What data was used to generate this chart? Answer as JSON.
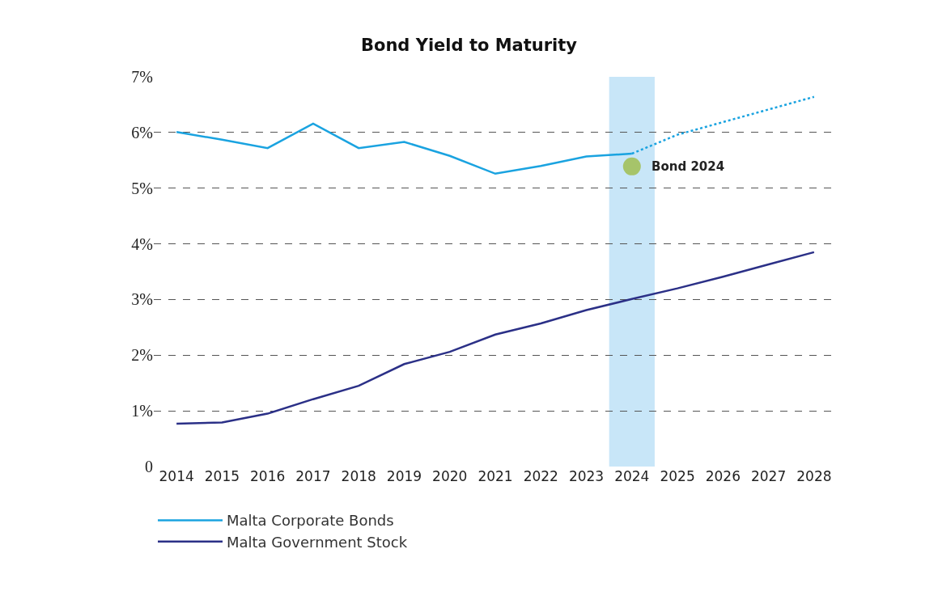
{
  "chart_data": {
    "type": "line",
    "title": "Bond Yield to Maturity",
    "x": [
      2014,
      2015,
      2016,
      2017,
      2018,
      2019,
      2020,
      2021,
      2022,
      2023,
      2024,
      2025,
      2026,
      2027,
      2028
    ],
    "series": [
      {
        "name": "Malta Corporate Bonds",
        "color": "#1aa3e0",
        "values": [
          6.01,
          5.87,
          5.72,
          6.16,
          5.72,
          5.83,
          5.58,
          5.26,
          5.4,
          5.57,
          5.62,
          null,
          null,
          null,
          null
        ]
      },
      {
        "name": "Malta Government Stock",
        "color": "#2b3087",
        "values": [
          0.77,
          0.79,
          0.95,
          1.21,
          1.45,
          1.84,
          2.06,
          2.37,
          2.57,
          2.81,
          3.01,
          3.2,
          3.41,
          3.63,
          3.85
        ]
      },
      {
        "color": "#1aa3e0",
        "line_style": "dotted",
        "x": [
          2024,
          2025,
          2028
        ],
        "values": [
          5.62,
          5.96,
          6.64
        ]
      },
      {
        "type": "scatter",
        "color": "#a6c46a",
        "marker": "circle",
        "x": [
          2024
        ],
        "values": [
          5.39
        ]
      }
    ],
    "bands": [
      {
        "axis": "x",
        "from": 2023.5,
        "to": 2024.5,
        "color": "#c8e6f8"
      }
    ],
    "annotations": [
      {
        "text": "Bond 2024",
        "x": 2024,
        "y": 5.39
      }
    ],
    "xlim": [
      2013.5,
      2028.5
    ],
    "xticks": [
      2014,
      2015,
      2016,
      2017,
      2018,
      2019,
      2020,
      2021,
      2022,
      2023,
      2024,
      2025,
      2026,
      2027,
      2028
    ],
    "ylim": [
      0,
      7
    ],
    "yticks": [
      {
        "value": 0,
        "label": "0"
      },
      {
        "value": 1,
        "label": "1%"
      },
      {
        "value": 2,
        "label": "2%"
      },
      {
        "value": 3,
        "label": "3%"
      },
      {
        "value": 4,
        "label": "4%"
      },
      {
        "value": 5,
        "label": "5%"
      },
      {
        "value": 6,
        "label": "6%"
      },
      {
        "value": 7,
        "label": "7%"
      }
    ],
    "grid": "y",
    "legend": "bottom left",
    "marker": "none"
  }
}
